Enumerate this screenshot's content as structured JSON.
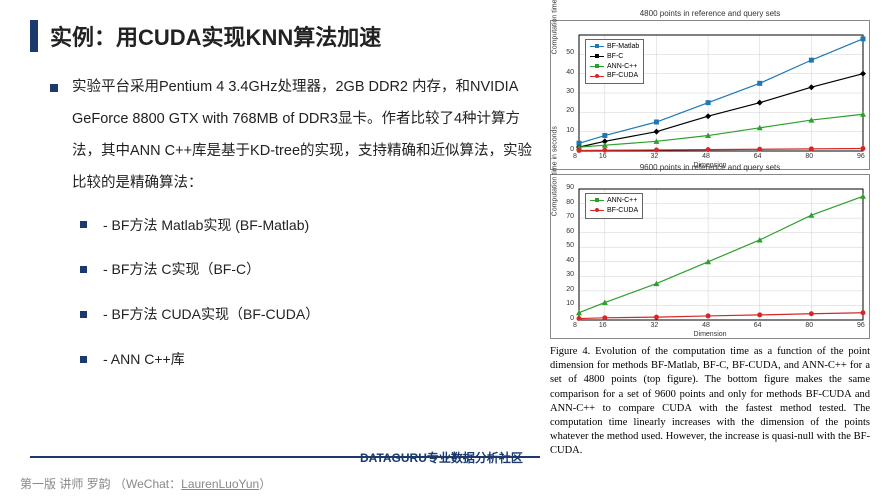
{
  "title": "实例：用CUDA实现KNN算法加速",
  "paragraph": "实验平台采用Pentium 4 3.4GHz处理器，2GB DDR2 内存，和NVIDIA GeForce 8800 GTX with 768MB of DDR3显卡。作者比较了4种计算方法，其中ANN C++库是基于KD-tree的实现，支持精确和近似算法，实验比较的是精确算法：",
  "subitems": [
    "- BF方法 Matlab实现 (BF-Matlab)",
    "- BF方法 C实现（BF-C）",
    "- BF方法 CUDA实现（BF-CUDA）",
    "- ANN C++库"
  ],
  "footer_brand": "DATAGURU专业数据分析社区",
  "footer_credit_prefix": "第一版 讲师 罗韵 （WeChat：",
  "footer_credit_link": "LaurenLuoYun",
  "footer_credit_suffix": "）",
  "caption": "Figure 4. Evolution of the computation time as a function of the point dimension for methods BF-Matlab, BF-C, BF-CUDA, and ANN-C++ for a set of 4800 points (top figure). The bottom figure makes the same comparison for a set of 9600 points and only for methods BF-CUDA and ANN-C++ to compare CUDA with the fastest method tested. The computation time linearly increases with the dimension of the points whatever the method used. However, the increase is quasi-null with the BF-CUDA.",
  "chart_top": {
    "type": "line",
    "title": "4800 points in reference and query sets",
    "xlabel": "Dimension",
    "ylabel": "Computation time in seconds",
    "xlim": [
      8,
      96
    ],
    "ylim": [
      0,
      60
    ],
    "xticks": [
      8,
      16,
      32,
      48,
      64,
      80,
      96
    ],
    "yticks": [
      0,
      10,
      20,
      30,
      40,
      50
    ],
    "grid_color": "#d0d0d0",
    "background_color": "#ffffff",
    "series": [
      {
        "name": "BF-Matlab",
        "color": "#1f77b4",
        "marker": "square",
        "x": [
          8,
          16,
          32,
          48,
          64,
          80,
          96
        ],
        "y": [
          4,
          8,
          15,
          25,
          35,
          47,
          58
        ]
      },
      {
        "name": "BF-C",
        "color": "#000000",
        "marker": "diamond",
        "x": [
          8,
          16,
          32,
          48,
          64,
          80,
          96
        ],
        "y": [
          2,
          5,
          10,
          18,
          25,
          33,
          40
        ]
      },
      {
        "name": "ANN-C++",
        "color": "#2ca02c",
        "marker": "triangle",
        "x": [
          8,
          16,
          32,
          48,
          64,
          80,
          96
        ],
        "y": [
          2,
          3,
          5,
          8,
          12,
          16,
          19
        ]
      },
      {
        "name": "BF-CUDA",
        "color": "#d62728",
        "marker": "circle",
        "x": [
          8,
          16,
          32,
          48,
          64,
          80,
          96
        ],
        "y": [
          0.3,
          0.4,
          0.5,
          0.7,
          0.9,
          1.1,
          1.3
        ]
      }
    ]
  },
  "chart_bot": {
    "type": "line",
    "title": "9600 points in reference and query sets",
    "xlabel": "Dimension",
    "ylabel": "Computation time in seconds",
    "xlim": [
      8,
      96
    ],
    "ylim": [
      0,
      90
    ],
    "xticks": [
      8,
      16,
      32,
      48,
      64,
      80,
      96
    ],
    "yticks": [
      0,
      10,
      20,
      30,
      40,
      50,
      60,
      70,
      80,
      90
    ],
    "grid_color": "#d0d0d0",
    "background_color": "#ffffff",
    "series": [
      {
        "name": "ANN-C++",
        "color": "#2ca02c",
        "marker": "triangle",
        "x": [
          8,
          16,
          32,
          48,
          64,
          80,
          96
        ],
        "y": [
          5,
          12,
          25,
          40,
          55,
          72,
          85
        ]
      },
      {
        "name": "BF-CUDA",
        "color": "#d62728",
        "marker": "circle",
        "x": [
          8,
          16,
          32,
          48,
          64,
          80,
          96
        ],
        "y": [
          1,
          1.5,
          2,
          2.8,
          3.5,
          4.3,
          5
        ]
      }
    ]
  }
}
